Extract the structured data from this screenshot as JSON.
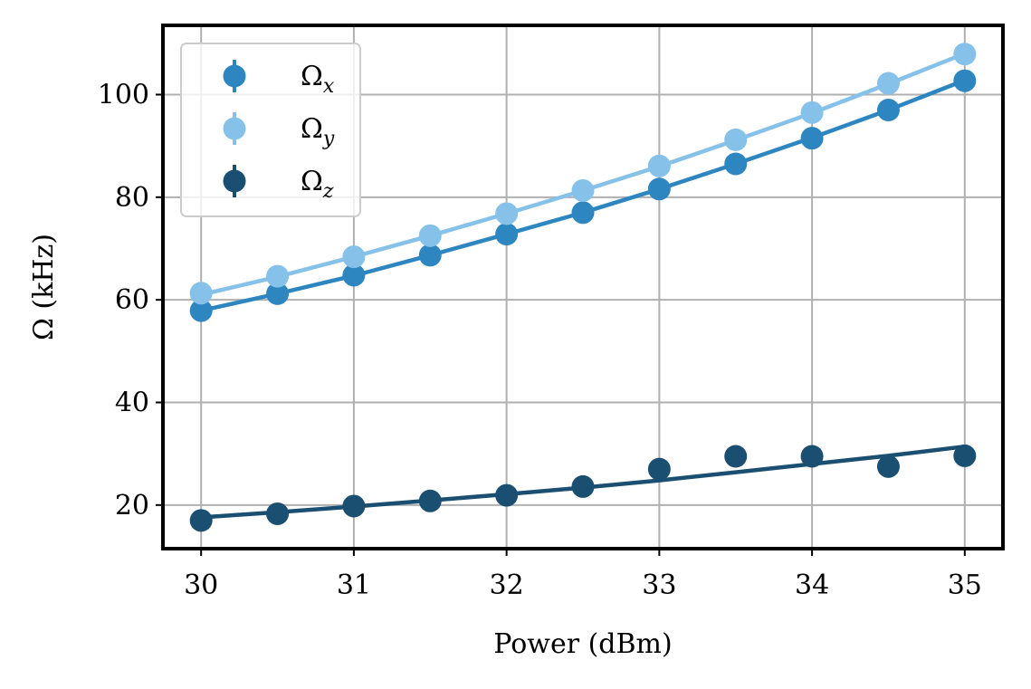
{
  "chart_data": {
    "type": "scatter",
    "title": "",
    "xlabel": "Power (dBm)",
    "ylabel": "Ω (kHz)",
    "xlim": [
      29.75,
      35.25
    ],
    "ylim": [
      11.5,
      113.5
    ],
    "xticks": [
      30,
      31,
      32,
      33,
      34,
      35
    ],
    "yticks": [
      20,
      40,
      60,
      80,
      100
    ],
    "grid": true,
    "legend_position": "upper-left",
    "x": [
      30,
      30.5,
      31,
      31.5,
      32,
      32.5,
      33,
      33.5,
      34,
      34.5,
      35
    ],
    "series": [
      {
        "name": "Ωx",
        "legend_base": "Ω",
        "legend_sub": "x",
        "color": "#2e86c1",
        "points": [
          57.9,
          61.2,
          64.8,
          68.7,
          72.8,
          77.0,
          81.6,
          86.5,
          91.5,
          97.0,
          102.7
        ],
        "fit": [
          57.9,
          61.2,
          64.7,
          68.7,
          72.8,
          77.0,
          81.6,
          86.5,
          91.6,
          97.0,
          102.8
        ]
      },
      {
        "name": "Ωy",
        "legend_base": "Ω",
        "legend_sub": "y",
        "color": "#85c1e9",
        "points": [
          61.3,
          64.6,
          68.4,
          72.5,
          76.8,
          81.3,
          86.1,
          91.2,
          96.5,
          102.2,
          107.9
        ],
        "fit": [
          61.0,
          64.5,
          68.4,
          72.5,
          76.8,
          81.3,
          86.0,
          91.1,
          96.4,
          102.1,
          108.0
        ]
      },
      {
        "name": "Ωz",
        "legend_base": "Ω",
        "legend_sub": "z",
        "color": "#1b4f72",
        "points": [
          17.0,
          18.3,
          19.8,
          20.8,
          21.9,
          23.6,
          27.0,
          29.5,
          29.5,
          27.5,
          29.6
        ],
        "fit": [
          17.6,
          18.6,
          19.7,
          20.9,
          22.1,
          23.4,
          24.8,
          26.4,
          28.0,
          29.6,
          31.4
        ]
      }
    ]
  }
}
